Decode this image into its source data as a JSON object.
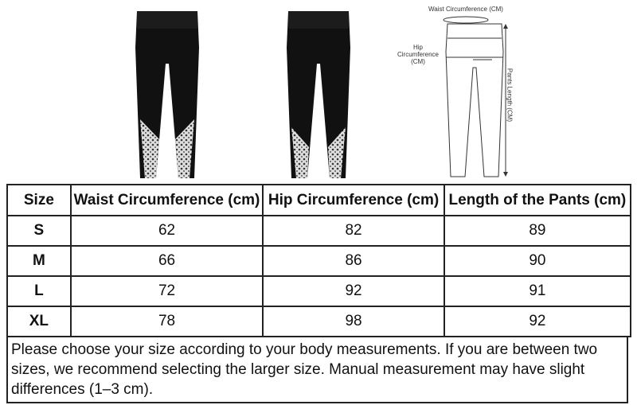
{
  "images": {
    "front": "leggings-front-photo",
    "back": "leggings-back-photo",
    "diagram": {
      "waist_label": "Waist Circumference (CM)",
      "hip_label": "Hip Circumference (CM)",
      "length_label": "Pants Length (CM)"
    }
  },
  "table": {
    "headers": [
      "Size",
      "Waist Circumference (cm)",
      "Hip Circumference (cm)",
      "Length of the Pants (cm)"
    ],
    "rows": [
      [
        "S",
        "62",
        "82",
        "89"
      ],
      [
        "M",
        "66",
        "86",
        "90"
      ],
      [
        "L",
        "72",
        "92",
        "91"
      ],
      [
        "XL",
        "78",
        "98",
        "92"
      ]
    ]
  },
  "note": "Please choose your size according to your body measurements. If you are between two sizes, we recommend selecting the larger size. Manual measurement may have slight differences (1–3 cm)."
}
